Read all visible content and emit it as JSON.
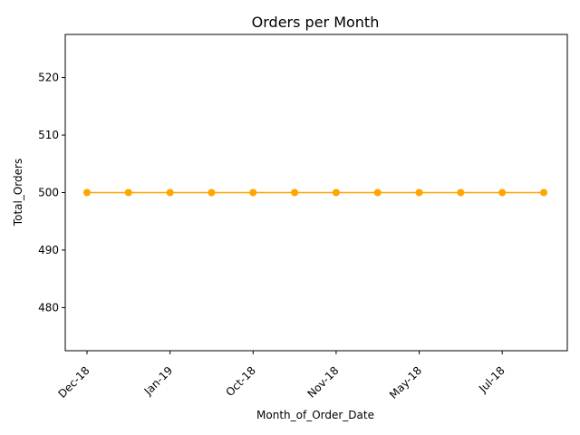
{
  "chart_data": {
    "type": "line",
    "title": "Orders per Month",
    "xlabel": "Month_of_Order_Date",
    "ylabel": "Total_Orders",
    "categories": [
      "Dec-18",
      "",
      "Jan-19",
      "",
      "Oct-18",
      "",
      "Nov-18",
      "",
      "May-18",
      "",
      "Jul-18",
      ""
    ],
    "x_tick_labels": [
      "Dec-18",
      "Jan-19",
      "Oct-18",
      "Nov-18",
      "May-18",
      "Jul-18"
    ],
    "series": [
      {
        "values": [
          500,
          500,
          500,
          500,
          500,
          500,
          500,
          500,
          500,
          500,
          500,
          500
        ],
        "color": "#ffa500",
        "marker": "circle"
      }
    ],
    "ylim": [
      472.5,
      527.5
    ],
    "y_ticks": [
      480,
      490,
      500,
      510,
      520
    ],
    "grid": false,
    "legend": "none"
  }
}
